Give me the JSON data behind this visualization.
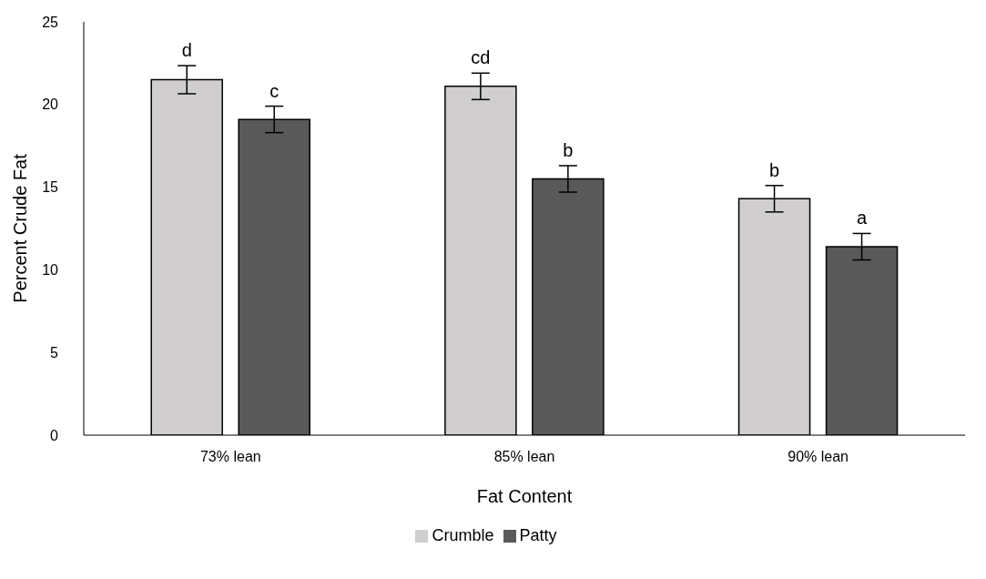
{
  "chart_data": {
    "type": "bar",
    "xlabel": "Fat Content",
    "ylabel": "Percent Crude Fat",
    "categories": [
      "73% lean",
      "85% lean",
      "90% lean"
    ],
    "series": [
      {
        "name": "Crumble",
        "color": "#d0cecf",
        "values": [
          21.5,
          21.1,
          14.3
        ],
        "errors": [
          0.85,
          0.8,
          0.8
        ],
        "value_labels": [
          "d",
          "cd",
          "b"
        ]
      },
      {
        "name": "Patty",
        "color": "#595959",
        "values": [
          19.1,
          15.5,
          11.4
        ],
        "errors": [
          0.8,
          0.8,
          0.8
        ],
        "value_labels": [
          "c",
          "b",
          "a"
        ]
      }
    ],
    "ylim": [
      0,
      25
    ],
    "yticks": [
      0,
      5,
      10,
      15,
      20,
      25
    ],
    "grid": false,
    "legend": "bottom"
  }
}
